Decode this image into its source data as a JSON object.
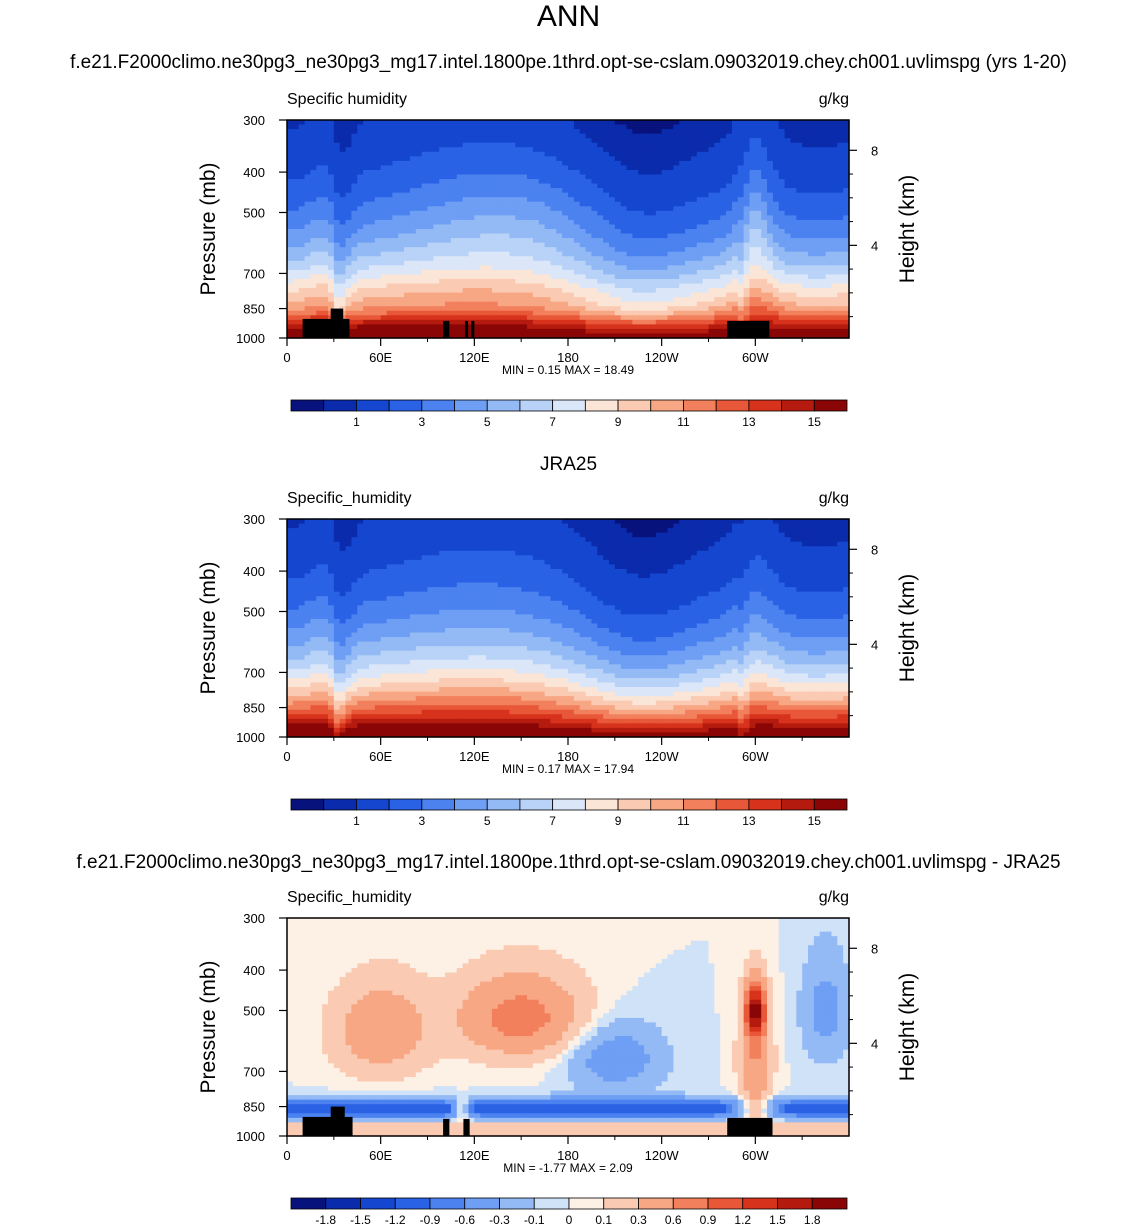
{
  "title": "ANN",
  "test_case": "f.e21.F2000climo.ne30pg3_ne30pg3_mg17.intel.1800pe.1thrd.opt-se-cslam.09032019.chey.ch001.uvlimspg (yrs 1-20)",
  "ref_case": "JRA25",
  "diff_case": "f.e21.F2000climo.ne30pg3_ne30pg3_mg17.intel.1800pe.1thrd.opt-se-cslam.09032019.chey.ch001.uvlimspg - JRA25",
  "chart_data": [
    {
      "type": "heatmap",
      "name": "test",
      "left_label": "Specific humidity",
      "right_label": "g/kg",
      "xlabel": "",
      "ylabel": "Pressure (mb)",
      "ylabel_right": "Height (km)",
      "x_ticks": [
        "0",
        "60E",
        "120E",
        "180",
        "120W",
        "60W"
      ],
      "x_tick_values": [
        0,
        60,
        120,
        180,
        240,
        300
      ],
      "xlim": [
        0,
        360
      ],
      "y_ticks": [
        "300",
        "400",
        "500",
        "700",
        "850",
        "1000"
      ],
      "y_tick_values": [
        300,
        400,
        500,
        700,
        850,
        1000
      ],
      "ylim": [
        1000,
        300
      ],
      "height_ticks": [
        "8",
        "4"
      ],
      "height_tick_values": [
        8,
        4
      ],
      "min_label": "MIN =   0.15  MAX =  18.49",
      "min": 0.15,
      "max": 18.49,
      "colorbar_labels": [
        "1",
        "3",
        "5",
        "7",
        "9",
        "11",
        "13",
        "15"
      ],
      "levels": [
        0.5,
        1,
        2,
        3,
        4,
        5,
        6,
        7,
        8,
        9,
        10,
        11,
        12,
        13,
        14,
        15
      ],
      "colors": [
        "#08127d",
        "#0a2bab",
        "#1446cf",
        "#2a62e6",
        "#4b82f0",
        "#6e9ff4",
        "#93baf5",
        "#b8d3f7",
        "#dbe7f8",
        "#fbe5d6",
        "#fbcab2",
        "#f7a784",
        "#f2805c",
        "#e85838",
        "#d6321c",
        "#b41a0e",
        "#8a0606"
      ],
      "black_boxes_lon_p": [
        [
          10,
          40,
          900,
          1000
        ],
        [
          28,
          36,
          850,
          1000
        ],
        [
          100,
          104,
          910,
          1000
        ],
        [
          114,
          116,
          910,
          1000
        ],
        [
          118,
          120,
          910,
          1000
        ],
        [
          282,
          309,
          910,
          1000
        ]
      ]
    },
    {
      "type": "heatmap",
      "name": "ref",
      "left_label": "Specific_humidity",
      "right_label": "g/kg",
      "xlabel": "",
      "ylabel": "Pressure (mb)",
      "ylabel_right": "Height (km)",
      "x_ticks": [
        "0",
        "60E",
        "120E",
        "180",
        "120W",
        "60W"
      ],
      "x_tick_values": [
        0,
        60,
        120,
        180,
        240,
        300
      ],
      "xlim": [
        0,
        360
      ],
      "y_ticks": [
        "300",
        "400",
        "500",
        "700",
        "850",
        "1000"
      ],
      "y_tick_values": [
        300,
        400,
        500,
        700,
        850,
        1000
      ],
      "ylim": [
        1000,
        300
      ],
      "height_ticks": [
        "8",
        "4"
      ],
      "height_tick_values": [
        8,
        4
      ],
      "min_label": "MIN =   0.17  MAX =  17.94",
      "min": 0.17,
      "max": 17.94,
      "colorbar_labels": [
        "1",
        "3",
        "5",
        "7",
        "9",
        "11",
        "13",
        "15"
      ],
      "levels": [
        0.5,
        1,
        2,
        3,
        4,
        5,
        6,
        7,
        8,
        9,
        10,
        11,
        12,
        13,
        14,
        15
      ],
      "colors": [
        "#08127d",
        "#0a2bab",
        "#1446cf",
        "#2a62e6",
        "#4b82f0",
        "#6e9ff4",
        "#93baf5",
        "#b8d3f7",
        "#dbe7f8",
        "#fbe5d6",
        "#fbcab2",
        "#f7a784",
        "#f2805c",
        "#e85838",
        "#d6321c",
        "#b41a0e",
        "#8a0606"
      ],
      "black_boxes_lon_p": []
    },
    {
      "type": "heatmap",
      "name": "diff",
      "left_label": "Specific_humidity",
      "right_label": "g/kg",
      "xlabel": "",
      "ylabel": "Pressure (mb)",
      "ylabel_right": "Height (km)",
      "x_ticks": [
        "0",
        "60E",
        "120E",
        "180",
        "120W",
        "60W"
      ],
      "x_tick_values": [
        0,
        60,
        120,
        180,
        240,
        300
      ],
      "xlim": [
        0,
        360
      ],
      "y_ticks": [
        "300",
        "400",
        "500",
        "700",
        "850",
        "1000"
      ],
      "y_tick_values": [
        300,
        400,
        500,
        700,
        850,
        1000
      ],
      "ylim": [
        1000,
        300
      ],
      "height_ticks": [
        "8",
        "4"
      ],
      "height_tick_values": [
        8,
        4
      ],
      "min_label": "MIN =  -1.77  MAX =   2.09",
      "min": -1.77,
      "max": 2.09,
      "colorbar_labels": [
        "-1.8",
        "-1.5",
        "-1.2",
        "-0.9",
        "-0.6",
        "-0.3",
        "-0.1",
        "0",
        "0.1",
        "0.3",
        "0.6",
        "0.9",
        "1.2",
        "1.5",
        "1.8"
      ],
      "levels": [
        -1.8,
        -1.5,
        -1.2,
        -0.9,
        -0.6,
        -0.3,
        -0.1,
        0,
        0.1,
        0.3,
        0.6,
        0.9,
        1.2,
        1.5,
        1.8
      ],
      "colors": [
        "#08127d",
        "#0a2bab",
        "#1446cf",
        "#2a62e6",
        "#4b82f0",
        "#6e9ff4",
        "#93baf5",
        "#cfe2f8",
        "#fdf1e6",
        "#fbcab2",
        "#f7a784",
        "#f2805c",
        "#e85838",
        "#d6321c",
        "#b41a0e",
        "#8a0606"
      ],
      "black_boxes_lon_p": [
        [
          10,
          42,
          900,
          1000
        ],
        [
          28,
          37,
          850,
          1000
        ],
        [
          100,
          104,
          910,
          1000
        ],
        [
          113,
          117,
          910,
          1000
        ],
        [
          282,
          311,
          905,
          1000
        ]
      ]
    }
  ]
}
